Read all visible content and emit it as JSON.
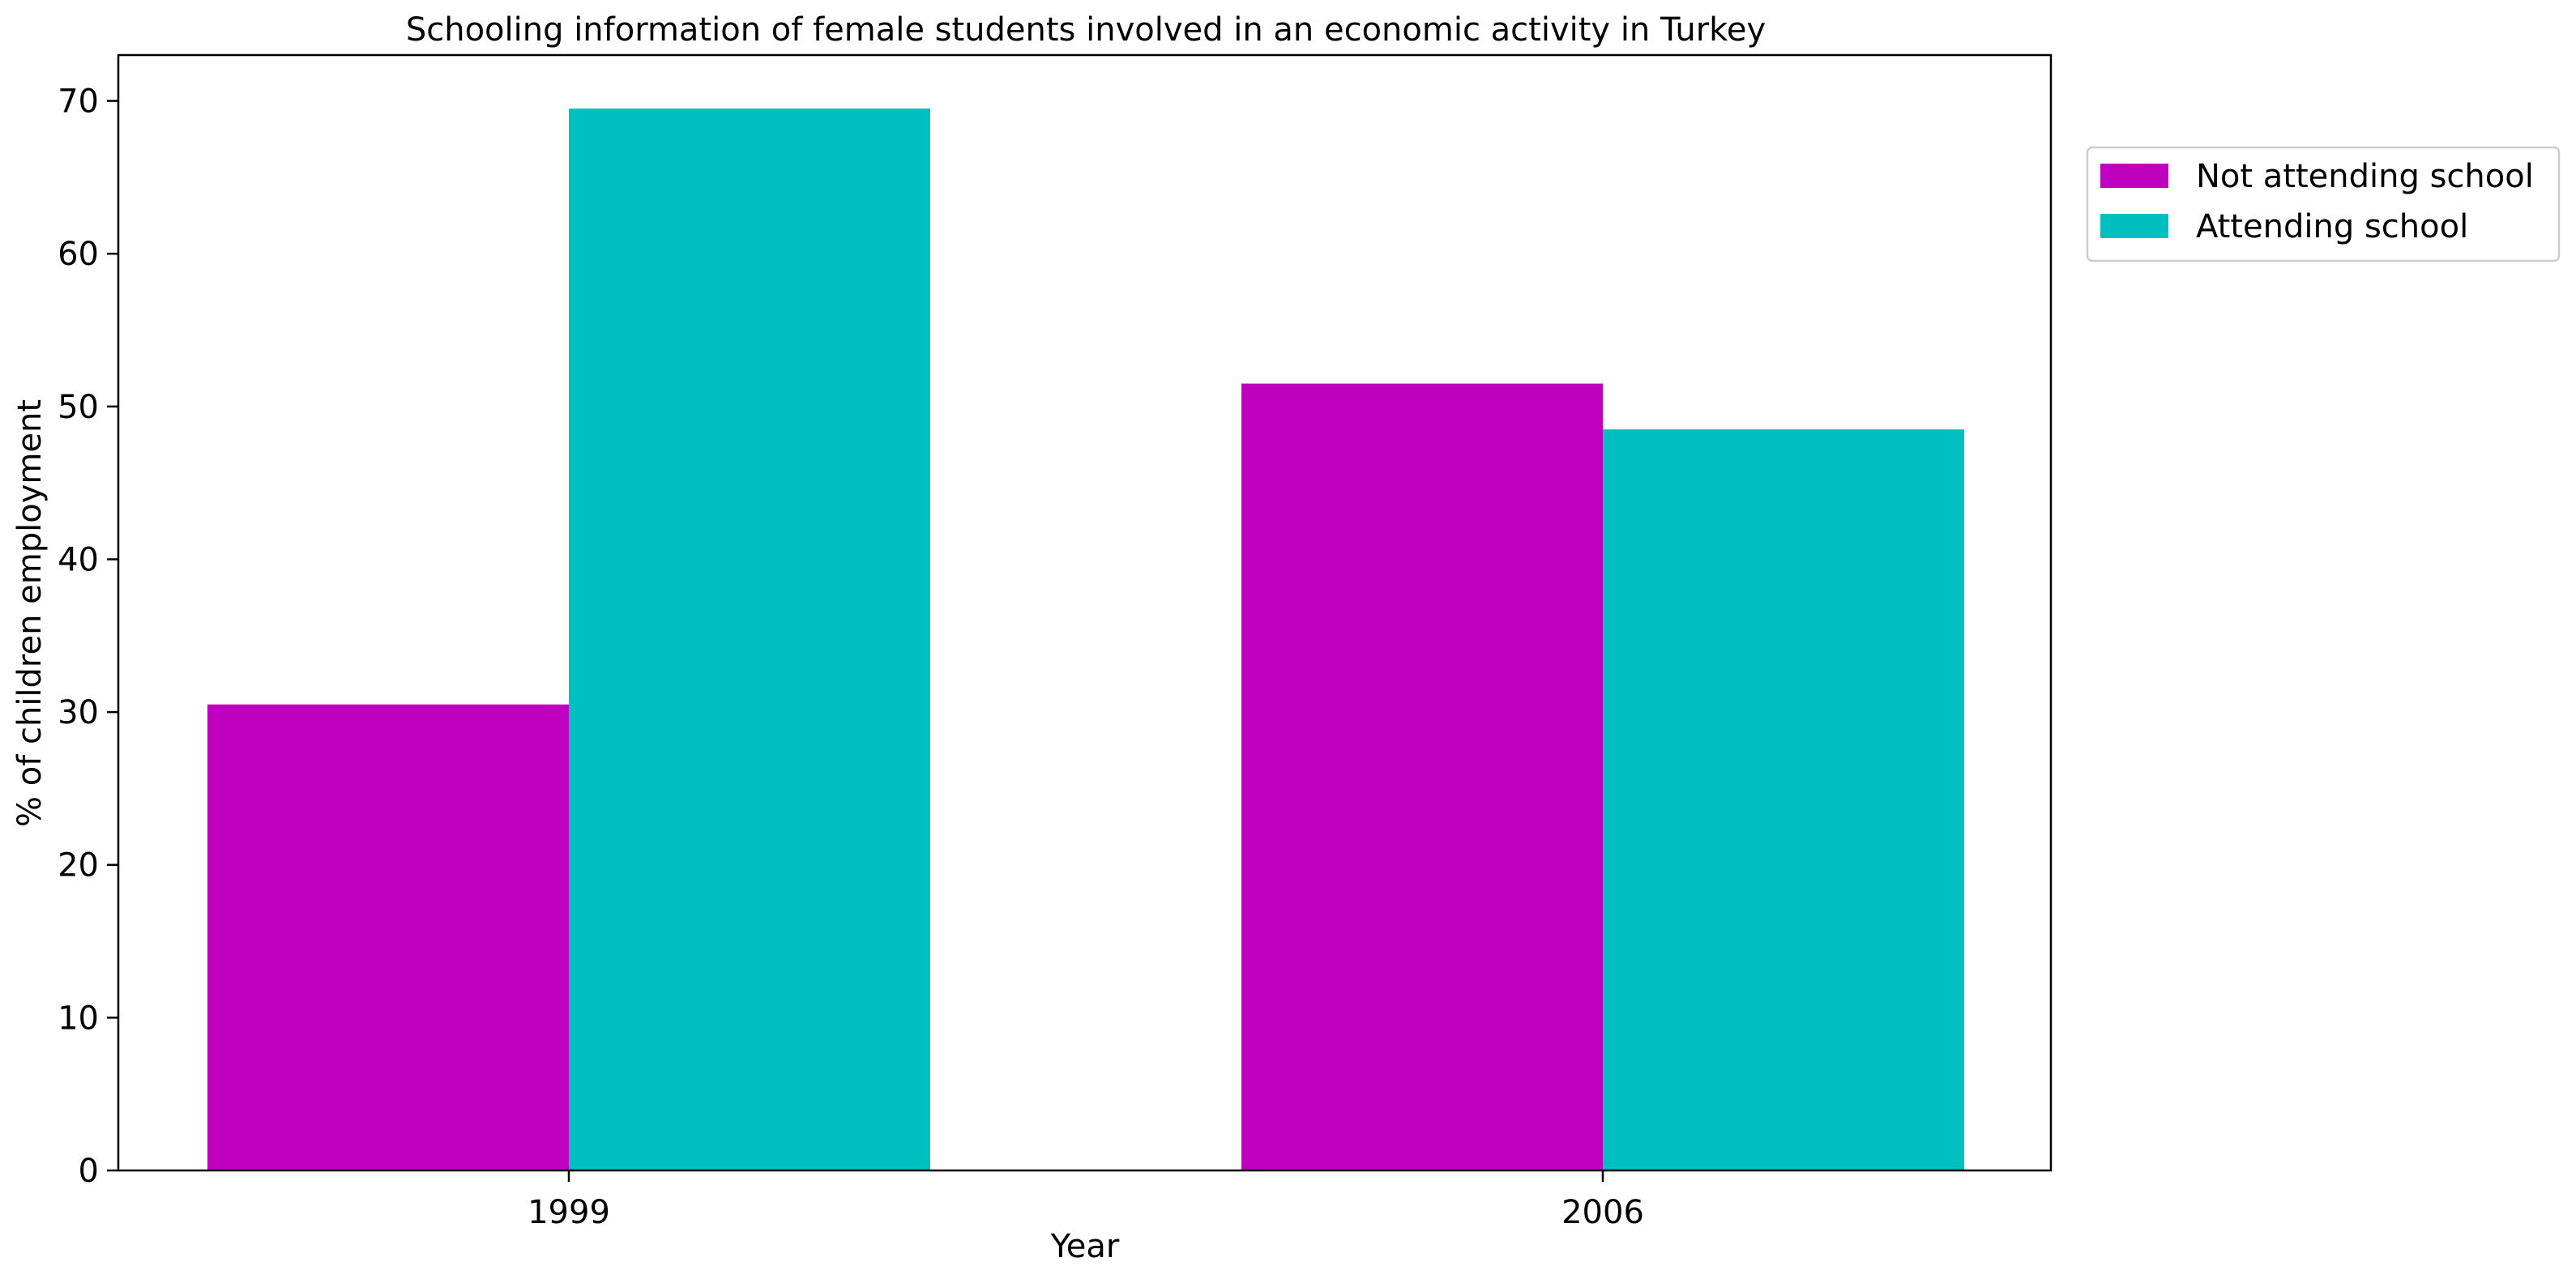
{
  "chart_data": {
    "type": "bar",
    "title": "Schooling information of female students involved in an economic activity in Turkey",
    "xlabel": "Year",
    "ylabel": "% of children employment",
    "categories": [
      "1999",
      "2006"
    ],
    "series": [
      {
        "name": "Not attending school",
        "color": "#BF00BF",
        "values": [
          30.5,
          51.5
        ]
      },
      {
        "name": "Attending school",
        "color": "#00BFBF",
        "values": [
          69.5,
          48.5
        ]
      }
    ],
    "ylim": [
      0,
      73
    ],
    "yticks": [
      "0",
      "10",
      "20",
      "30",
      "40",
      "50",
      "60",
      "70"
    ],
    "grid": false,
    "legend": "upper right, outside plot area"
  }
}
